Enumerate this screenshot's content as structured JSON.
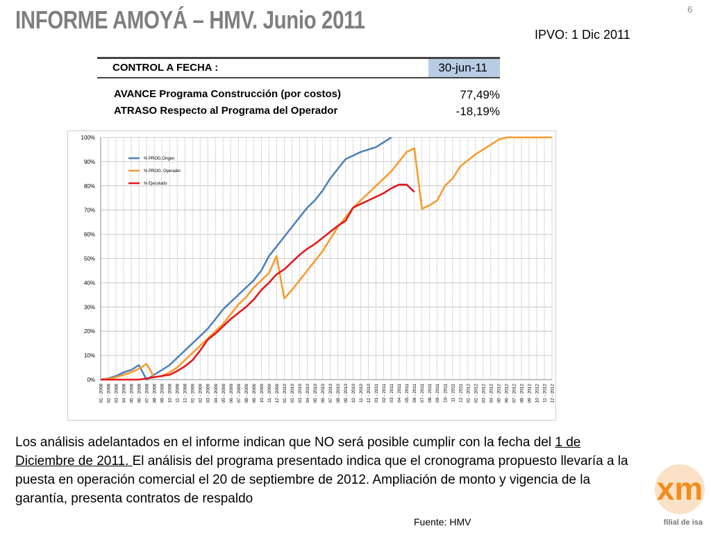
{
  "title": "INFORME AMOYÁ – HMV.  Junio 2011",
  "page_number": "6",
  "ipvo": "IPVO: 1 Dic 2011",
  "table": {
    "header": [
      "CONTROL A FECHA :",
      "30-jun-11"
    ],
    "rows": [
      [
        "AVANCE Programa Construcción (por costos)",
        "77,49%"
      ],
      [
        "ATRASO Respecto al Programa del Operador",
        "-18,19%"
      ]
    ]
  },
  "paragraph": [
    "Los análisis adelantados en el informe indican que NO será posible cumplir con la fecha del ",
    "1 de Diciembre de 2011. ",
    "El análisis del programa presentado indica que el cronograma propuesto llevaría a la puesta en operación comercial el 20 de septiembre de 2012. Ampliación de monto y vigencia de la garantía, presenta contratos de respaldo"
  ],
  "source": "Fuente: HMV",
  "logo": {
    "mark": "xm",
    "tagline": "filial de isa"
  },
  "chart_data": {
    "type": "line",
    "grid": true,
    "legend": "top-left",
    "categories": [
      "01 - 2008",
      "02 - 2008",
      "03 - 2008",
      "04 - 2008",
      "05 - 2008",
      "06 - 2008",
      "07 - 2008",
      "08 - 2008",
      "09 - 2008",
      "10 - 2008",
      "11 - 2008",
      "12 - 2008",
      "01 - 2009",
      "02 - 2009",
      "03 - 2009",
      "04 - 2009",
      "05 - 2009",
      "06 - 2009",
      "07 - 2009",
      "08 - 2009",
      "09 - 2009",
      "10 - 2009",
      "11 - 2009",
      "12 - 2009",
      "01 - 2010",
      "02 - 2010",
      "03 - 2010",
      "04 - 2010",
      "05 - 2010",
      "06 - 2010",
      "07 - 2010",
      "08 - 2010",
      "09 - 2010",
      "10 - 2010",
      "11 - 2010",
      "12 - 2010",
      "01 - 2011",
      "02 - 2011",
      "03 - 2011",
      "04 - 2011",
      "05 - 2011",
      "06 - 2011",
      "07 - 2011",
      "08 - 2011",
      "09 - 2011",
      "10 - 2011",
      "11 - 2011",
      "12 - 2011",
      "01 - 2012",
      "02 - 2012",
      "03 - 2012",
      "04 - 2012",
      "05 - 2012",
      "06 - 2012",
      "07 - 2012",
      "08 - 2012",
      "09 - 2012",
      "10 - 2012",
      "11 - 2012",
      "12 - 2012"
    ],
    "ylim": [
      0,
      100
    ],
    "yticks": [
      {
        "value": 0,
        "label": "0%"
      },
      {
        "value": 10,
        "label": "10%"
      },
      {
        "value": 20,
        "label": "20%"
      },
      {
        "value": 30,
        "label": "30%"
      },
      {
        "value": 40,
        "label": "40%"
      },
      {
        "value": 50,
        "label": "50%"
      },
      {
        "value": 60,
        "label": "60%"
      },
      {
        "value": 70,
        "label": "70%"
      },
      {
        "value": 80,
        "label": "80%"
      },
      {
        "value": 90,
        "label": "90%"
      },
      {
        "value": 100,
        "label": "100%"
      }
    ],
    "series": [
      {
        "name": "% PROG.Origen",
        "color": "#4f81bd",
        "values": [
          0,
          0.5,
          1.5,
          3,
          4,
          6,
          0,
          2,
          4,
          6,
          9,
          12,
          15,
          18,
          21,
          25,
          29,
          32,
          35,
          38,
          41,
          45,
          51,
          55,
          59,
          63,
          67,
          71,
          74,
          78,
          83,
          87,
          91,
          92.5,
          94,
          95,
          96,
          98,
          100,
          null,
          null,
          null,
          null,
          null,
          null,
          null,
          null,
          null,
          null,
          null,
          null,
          null,
          null,
          null,
          null,
          null,
          null,
          null,
          null,
          null
        ]
      },
      {
        "name": "% PROG. Operador",
        "color": "#f79b2e",
        "values": [
          0,
          0.3,
          1,
          2,
          3,
          4.5,
          6.5,
          1,
          1.5,
          3,
          5,
          8,
          11,
          14,
          17,
          20,
          23,
          27,
          31,
          34,
          38,
          41,
          44,
          51,
          33.5,
          37,
          41,
          45,
          49,
          53,
          58,
          63,
          67,
          71,
          74,
          77,
          80,
          83,
          86,
          90,
          94,
          95.5,
          70.5,
          72,
          74,
          80,
          83,
          88,
          90.5,
          93,
          95,
          97,
          99,
          100,
          100,
          100,
          100,
          100,
          100,
          100
        ]
      },
      {
        "name": "% Ejecutado",
        "color": "#e3171b",
        "values": [
          0,
          0,
          0,
          0,
          0,
          0,
          0.5,
          1,
          1.5,
          2,
          3.5,
          5.5,
          8,
          12,
          16.5,
          19,
          22,
          25,
          27.5,
          30,
          33,
          37,
          40,
          43.5,
          45.5,
          48.5,
          51.5,
          54,
          56,
          58.5,
          61,
          63.5,
          65.5,
          71,
          72.5,
          74,
          75.5,
          77,
          79,
          80.5,
          80.5,
          77.5,
          null,
          null,
          null,
          null,
          null,
          null,
          null,
          null,
          null,
          null,
          null,
          null,
          null,
          null,
          null,
          null,
          null,
          null
        ]
      }
    ]
  }
}
